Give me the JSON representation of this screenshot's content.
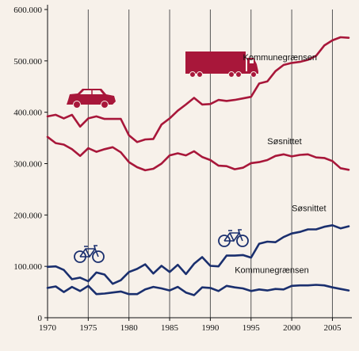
{
  "chart_data": {
    "type": "line",
    "title": "",
    "xlabel": "",
    "ylabel": "",
    "xlim": [
      1970,
      2007
    ],
    "ylim": [
      0,
      600000
    ],
    "grid": "vertical",
    "x_ticks": [
      "1970",
      "1975",
      "1980",
      "1985",
      "1990",
      "1995",
      "2000",
      "2005"
    ],
    "y_ticks": [
      "0",
      "100.000",
      "200.000",
      "300.000",
      "400.000",
      "500.000",
      "600.000"
    ],
    "x": [
      1970,
      1971,
      1972,
      1973,
      1974,
      1975,
      1976,
      1977,
      1978,
      1979,
      1980,
      1981,
      1982,
      1983,
      1984,
      1985,
      1986,
      1987,
      1988,
      1989,
      1990,
      1991,
      1992,
      1993,
      1994,
      1995,
      1996,
      1997,
      1998,
      1999,
      2000,
      2001,
      2002,
      2003,
      2004,
      2005,
      2006,
      2007
    ],
    "series": [
      {
        "name": "Kommunegrænsen",
        "color": "#a8173a",
        "icon": "car-and-truck-icon",
        "values": [
          392000,
          395000,
          388000,
          395000,
          372000,
          388000,
          392000,
          387000,
          387000,
          387000,
          355000,
          342000,
          347000,
          348000,
          376000,
          388000,
          403000,
          415000,
          428000,
          415000,
          416000,
          424000,
          422000,
          424000,
          427000,
          430000,
          456000,
          460000,
          480000,
          492000,
          496000,
          498000,
          502000,
          510000,
          530000,
          540000,
          546000,
          545000
        ]
      },
      {
        "name": "Søsnittet",
        "color": "#a8173a",
        "icon": "",
        "values": [
          352000,
          340000,
          337000,
          328000,
          315000,
          330000,
          323000,
          328000,
          332000,
          322000,
          303000,
          293000,
          287000,
          290000,
          300000,
          316000,
          320000,
          316000,
          324000,
          313000,
          307000,
          296000,
          295000,
          289000,
          292000,
          301000,
          303000,
          307000,
          315000,
          318000,
          314000,
          317000,
          318000,
          312000,
          311000,
          305000,
          291000,
          288000
        ]
      },
      {
        "name": "Søsnittet",
        "color": "#1a2f6e",
        "icon": "bicycle-icon",
        "values": [
          99000,
          100000,
          93000,
          75000,
          78000,
          71000,
          88000,
          84000,
          66000,
          73000,
          89000,
          95000,
          104000,
          86000,
          101000,
          89000,
          103000,
          85000,
          105000,
          118000,
          101000,
          100000,
          121000,
          121000,
          122000,
          117000,
          144000,
          148000,
          147000,
          157000,
          164000,
          167000,
          172000,
          172000,
          177000,
          180000,
          174000,
          178000
        ]
      },
      {
        "name": "Kommunegrænsen",
        "color": "#1a2f6e",
        "icon": "bicycle-icon",
        "values": [
          58000,
          61000,
          50000,
          60000,
          52000,
          62000,
          46000,
          47000,
          49000,
          51000,
          46000,
          46000,
          55000,
          60000,
          57000,
          53000,
          60000,
          49000,
          44000,
          59000,
          58000,
          52000,
          62000,
          59000,
          57000,
          52000,
          55000,
          53000,
          56000,
          55000,
          62000,
          63000,
          63000,
          64000,
          63000,
          59000,
          56000,
          53000
        ]
      }
    ],
    "annotations": [
      {
        "text": "Kommunegrænsen",
        "series": 0
      },
      {
        "text": "Søsnittet",
        "series": 1
      },
      {
        "text": "Søsnittet",
        "series": 2
      },
      {
        "text": "Kommunegrænsen",
        "series": 3
      }
    ]
  }
}
